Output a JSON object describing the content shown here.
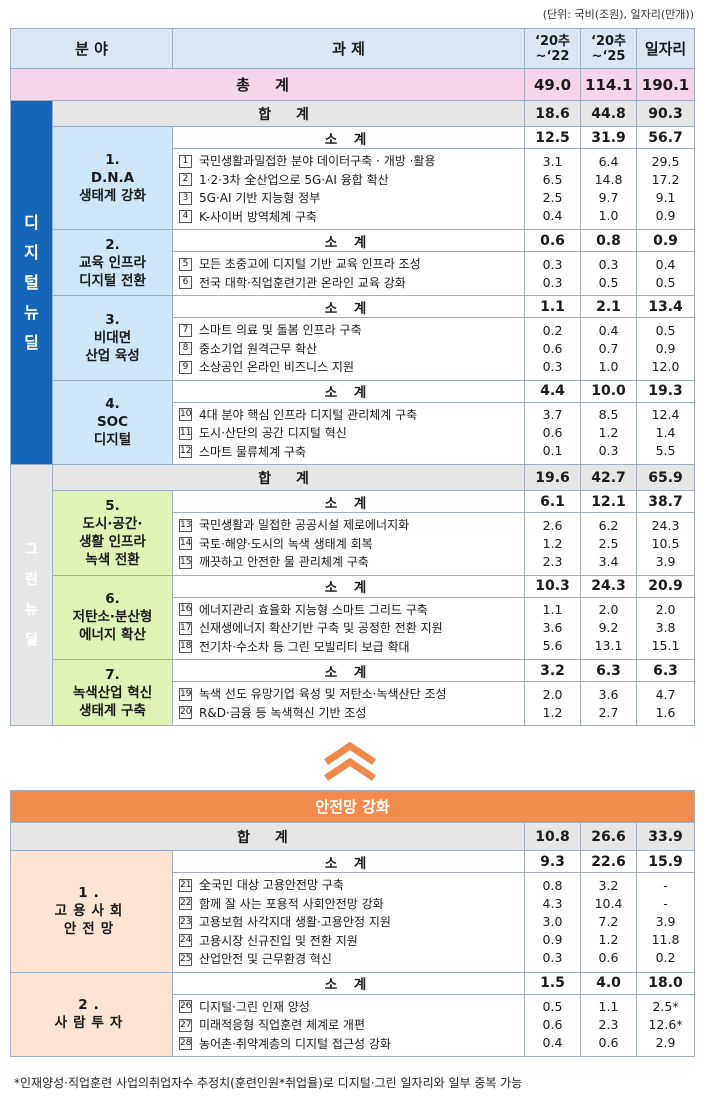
{
  "unit_note": "(단위: 국비(조원), 일자리(만개))",
  "header": {
    "field": "분 야",
    "task": "과 제",
    "c1a": "‘20추",
    "c1b": "~‘22",
    "c2a": "‘20추",
    "c2b": "~‘25",
    "c3": "일자리"
  },
  "total": {
    "label": "총 계",
    "v1": "49.0",
    "v2": "114.1",
    "v3": "190.1"
  },
  "digital": {
    "side": "디\n지\n털\n뉴\n딜",
    "sum": {
      "label": "합 계",
      "v1": "18.6",
      "v2": "44.8",
      "v3": "90.3"
    },
    "groups": [
      {
        "name": "1.\nD.N.A\n생태계 강화",
        "sub": {
          "label": "소 계",
          "v1": "12.5",
          "v2": "31.9",
          "v3": "56.7"
        },
        "items": [
          {
            "n": "1",
            "t": "국민생활과밀접한 분야 데이터구축 · 개방 ·활용",
            "v1": "3.1",
            "v2": "6.4",
            "v3": "29.5"
          },
          {
            "n": "2",
            "t": "1·2·3차 全산업으로 5G·AI 융합 확산",
            "v1": "6.5",
            "v2": "14.8",
            "v3": "17.2"
          },
          {
            "n": "3",
            "t": "5G·AI 기반 지능형 정부",
            "v1": "2.5",
            "v2": "9.7",
            "v3": "9.1"
          },
          {
            "n": "4",
            "t": "K-사이버 방역체계 구축",
            "v1": "0.4",
            "v2": "1.0",
            "v3": "0.9"
          }
        ]
      },
      {
        "name": "2.\n교육 인프라\n디지털 전환",
        "sub": {
          "label": "소 계",
          "v1": "0.6",
          "v2": "0.8",
          "v3": "0.9"
        },
        "items": [
          {
            "n": "5",
            "t": "모든 초중고에 디지털 기반 교육 인프라 조성",
            "v1": "0.3",
            "v2": "0.3",
            "v3": "0.4"
          },
          {
            "n": "6",
            "t": "전국 대학·직업훈련기관 온라인 교육 강화",
            "v1": "0.3",
            "v2": "0.5",
            "v3": "0.5"
          }
        ]
      },
      {
        "name": "3.\n비대면\n산업 육성",
        "sub": {
          "label": "소 계",
          "v1": "1.1",
          "v2": "2.1",
          "v3": "13.4"
        },
        "items": [
          {
            "n": "7",
            "t": "스마트 의료 및 돌봄 인프라 구축",
            "v1": "0.2",
            "v2": "0.4",
            "v3": "0.5"
          },
          {
            "n": "8",
            "t": "중소기업 원격근무 확산",
            "v1": "0.6",
            "v2": "0.7",
            "v3": "0.9"
          },
          {
            "n": "9",
            "t": "소상공인 온라인 비즈니스 지원",
            "v1": "0.3",
            "v2": "1.0",
            "v3": "12.0"
          }
        ]
      },
      {
        "name": "4.\nSOC\n디지털",
        "sub": {
          "label": "소 계",
          "v1": "4.4",
          "v2": "10.0",
          "v3": "19.3"
        },
        "items": [
          {
            "n": "10",
            "t": "4대 분야 핵심 인프라 디지털 관리체계 구축",
            "v1": "3.7",
            "v2": "8.5",
            "v3": "12.4"
          },
          {
            "n": "11",
            "t": "도시·산단의 공간 디지털 혁신",
            "v1": "0.6",
            "v2": "1.2",
            "v3": "1.4"
          },
          {
            "n": "12",
            "t": "스마트 물류체계 구축",
            "v1": "0.1",
            "v2": "0.3",
            "v3": "5.5"
          }
        ]
      }
    ]
  },
  "green": {
    "side": "그\n린\n뉴\n딜",
    "sum": {
      "label": "합 계",
      "v1": "19.6",
      "v2": "42.7",
      "v3": "65.9"
    },
    "groups": [
      {
        "name": "5.\n도시·공간·\n생활 인프라\n녹색 전환",
        "sub": {
          "label": "소 계",
          "v1": "6.1",
          "v2": "12.1",
          "v3": "38.7"
        },
        "items": [
          {
            "n": "13",
            "t": "국민생활과 밀접한 공공시설 제로에너지화",
            "v1": "2.6",
            "v2": "6.2",
            "v3": "24.3"
          },
          {
            "n": "14",
            "t": "국토·해양·도시의 녹색 생태계 회복",
            "v1": "1.2",
            "v2": "2.5",
            "v3": "10.5"
          },
          {
            "n": "15",
            "t": "깨끗하고 안전한 물 관리체계 구축",
            "v1": "2.3",
            "v2": "3.4",
            "v3": "3.9"
          }
        ]
      },
      {
        "name": "6.\n저탄소·분산형\n에너지 확산",
        "sub": {
          "label": "소 계",
          "v1": "10.3",
          "v2": "24.3",
          "v3": "20.9"
        },
        "items": [
          {
            "n": "16",
            "t": "에너지관리 효율화 지능형 스마트 그리드 구축",
            "v1": "1.1",
            "v2": "2.0",
            "v3": "2.0"
          },
          {
            "n": "17",
            "t": "신재생에너지 확산기반 구축 및 공정한 전환 지원",
            "v1": "3.6",
            "v2": "9.2",
            "v3": "3.8"
          },
          {
            "n": "18",
            "t": "전기차·수소차 등 그린 모빌리티 보급 확대",
            "v1": "5.6",
            "v2": "13.1",
            "v3": "15.1"
          }
        ]
      },
      {
        "name": "7.\n녹색산업 혁신\n생태계 구축",
        "sub": {
          "label": "소 계",
          "v1": "3.2",
          "v2": "6.3",
          "v3": "6.3"
        },
        "items": [
          {
            "n": "19",
            "t": "녹색 선도 유망기업 육성 및 저탄소·녹색산단 조성",
            "v1": "2.0",
            "v2": "3.6",
            "v3": "4.7"
          },
          {
            "n": "20",
            "t": "R&D·금융 등 녹색혁신 기반 조성",
            "v1": "1.2",
            "v2": "2.7",
            "v3": "1.6"
          }
        ]
      }
    ]
  },
  "safety": {
    "title": "안전망 강화",
    "sum": {
      "label": "합 계",
      "v1": "10.8",
      "v2": "26.6",
      "v3": "33.9"
    },
    "groups": [
      {
        "name": "1.\n고용사회\n안전망",
        "sub": {
          "label": "소 계",
          "v1": "9.3",
          "v2": "22.6",
          "v3": "15.9"
        },
        "items": [
          {
            "n": "21",
            "t": "全국민 대상 고용안전망 구축",
            "v1": "0.8",
            "v2": "3.2",
            "v3": "-"
          },
          {
            "n": "22",
            "t": "함께 잘 사는 포용적 사회안전망 강화",
            "v1": "4.3",
            "v2": "10.4",
            "v3": "-"
          },
          {
            "n": "23",
            "t": "고용보험 사각지대 생활·고용안정 지원",
            "v1": "3.0",
            "v2": "7.2",
            "v3": "3.9"
          },
          {
            "n": "24",
            "t": "고용시장 신규진입 및 전환 지원",
            "v1": "0.9",
            "v2": "1.2",
            "v3": "11.8"
          },
          {
            "n": "25",
            "t": "산업안전 및 근무환경 혁신",
            "v1": "0.3",
            "v2": "0.6",
            "v3": "0.2"
          }
        ]
      },
      {
        "name": "2.\n사람투자",
        "sub": {
          "label": "소 계",
          "v1": "1.5",
          "v2": "4.0",
          "v3": "18.0"
        },
        "items": [
          {
            "n": "26",
            "t": "디지털·그린 인재 양성",
            "v1": "0.5",
            "v2": "1.1",
            "v3": "2.5*"
          },
          {
            "n": "27",
            "t": "미래적응형 직업훈련 체계로 개편",
            "v1": "0.6",
            "v2": "2.3",
            "v3": "12.6*"
          },
          {
            "n": "28",
            "t": "농어촌·취약계층의 디지털 접근성 강화",
            "v1": "0.4",
            "v2": "0.6",
            "v3": "2.9"
          }
        ]
      }
    ]
  },
  "footnote": "*인재양성·직업훈련 사업의취업자수 추정치(훈련인원*취업율)로 디지털·그린 일자리와 일부 중복 가능",
  "colors": {
    "digital_side": "#1565b8",
    "green_side": "#79b83b",
    "safety_title": "#f28c4e",
    "header_bg": "#dbe7f3",
    "total_bg": "#f6d4ea",
    "arrow": "#f08a4b"
  },
  "icons": {
    "arrow": "double-chevron-up-icon"
  }
}
